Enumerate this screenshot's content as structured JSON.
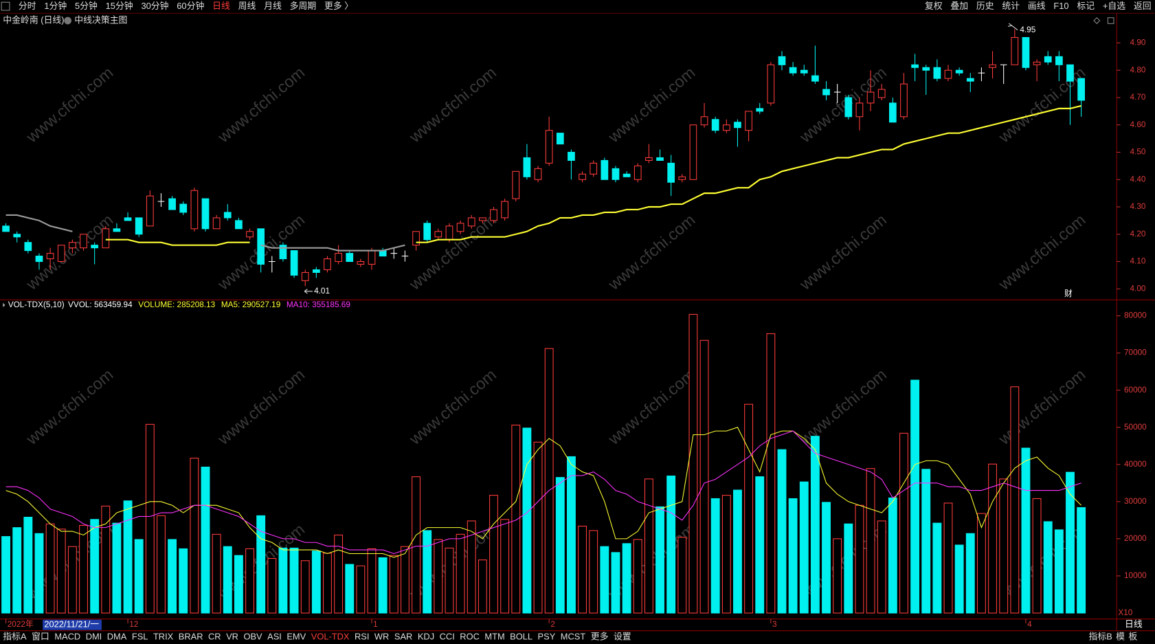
{
  "toolbar": {
    "left": [
      "分时",
      "1分钟",
      "5分钟",
      "15分钟",
      "30分钟",
      "60分钟",
      "日线",
      "周线",
      "月线",
      "多周期",
      "更多 〉"
    ],
    "active": "日线",
    "right": [
      "复权",
      "叠加",
      "历史",
      "统计",
      "画线",
      "F10",
      "标记",
      "+自选",
      "返回"
    ]
  },
  "header": {
    "title": "中金岭南 (日线)",
    "indicator": "中线决策主图"
  },
  "watermark": "www.cfchi.com",
  "bottom": {
    "tabs": [
      "指标A",
      "窗口",
      "MACD",
      "DMI",
      "DMA",
      "FSL",
      "TRIX",
      "BRAR",
      "CR",
      "VR",
      "OBV",
      "ASI",
      "EMV",
      "VOL-TDX",
      "RSI",
      "WR",
      "SAR",
      "KDJ",
      "CCI",
      "ROC",
      "MTM",
      "BOLL",
      "PSY",
      "MCST",
      "更多",
      "设置"
    ],
    "active": "VOL-TDX",
    "right": [
      "指标B",
      "模",
      "板"
    ],
    "period": "日线",
    "cursor_date": "2022/11/21/一"
  },
  "chart_data": [
    {
      "type": "candlestick",
      "up_color": "#ff3c3c",
      "down_color": "#00f0f0",
      "doji_color": "#ffffff",
      "categories": [
        "2022年",
        null,
        null,
        null,
        null,
        null,
        null,
        null,
        null,
        null,
        null,
        "12",
        null,
        null,
        null,
        null,
        null,
        null,
        null,
        null,
        null,
        null,
        null,
        null,
        null,
        null,
        null,
        null,
        null,
        null,
        null,
        null,
        null,
        "1",
        null,
        null,
        null,
        null,
        null,
        null,
        null,
        null,
        null,
        null,
        null,
        null,
        null,
        null,
        null,
        "2",
        null,
        null,
        null,
        null,
        null,
        null,
        null,
        null,
        null,
        null,
        null,
        null,
        null,
        null,
        null,
        null,
        null,
        null,
        null,
        "3",
        null,
        null,
        null,
        null,
        null,
        null,
        null,
        null,
        null,
        null,
        null,
        null,
        null,
        null,
        null,
        null,
        null,
        null,
        null,
        null,
        null,
        null,
        "4",
        null,
        null,
        null,
        null,
        null
      ],
      "open": [
        4.23,
        4.2,
        4.17,
        4.12,
        4.11,
        4.1,
        4.15,
        4.15,
        4.16,
        4.15,
        4.22,
        4.26,
        4.26,
        4.23,
        4.32,
        4.33,
        4.31,
        4.22,
        4.33,
        4.22,
        4.28,
        4.25,
        4.19,
        4.22,
        4.1,
        4.16,
        4.14,
        4.03,
        4.07,
        4.07,
        4.1,
        4.13,
        4.09,
        4.09,
        4.14,
        4.13,
        4.12,
        4.16,
        4.24,
        4.19,
        4.18,
        4.21,
        4.23,
        4.25,
        4.25,
        4.26,
        4.33,
        4.48,
        4.4,
        4.46,
        4.57,
        4.5,
        4.4,
        4.42,
        4.47,
        4.44,
        4.42,
        4.4,
        4.47,
        4.48,
        4.46,
        4.4,
        4.4,
        4.6,
        4.62,
        4.58,
        4.61,
        4.58,
        4.66,
        4.68,
        4.85,
        4.81,
        4.8,
        4.78,
        4.73,
        4.72,
        4.7,
        4.63,
        4.68,
        4.7,
        4.68,
        4.63,
        4.82,
        4.81,
        4.81,
        4.77,
        4.8,
        4.77,
        4.79,
        4.81,
        4.82,
        4.82,
        4.92,
        4.82,
        4.85,
        4.85,
        4.82,
        4.77
      ],
      "high": [
        4.24,
        4.21,
        4.18,
        4.13,
        4.15,
        4.16,
        4.18,
        4.2,
        4.17,
        4.23,
        4.24,
        4.28,
        4.26,
        4.36,
        4.35,
        4.34,
        4.32,
        4.37,
        4.33,
        4.27,
        4.31,
        4.26,
        4.22,
        4.22,
        4.12,
        4.17,
        4.14,
        4.07,
        4.08,
        4.12,
        4.16,
        4.14,
        4.11,
        4.15,
        4.15,
        4.15,
        4.14,
        4.21,
        4.25,
        4.22,
        4.24,
        4.25,
        4.27,
        4.26,
        4.3,
        4.33,
        4.43,
        4.53,
        4.45,
        4.63,
        4.57,
        4.51,
        4.43,
        4.47,
        4.48,
        4.45,
        4.43,
        4.46,
        4.53,
        4.51,
        4.49,
        4.42,
        4.6,
        4.68,
        4.63,
        4.62,
        4.62,
        4.65,
        4.68,
        4.83,
        4.87,
        4.83,
        4.82,
        4.89,
        4.76,
        4.75,
        4.71,
        4.7,
        4.8,
        4.75,
        4.7,
        4.79,
        4.86,
        4.82,
        4.84,
        4.82,
        4.81,
        4.79,
        4.81,
        4.87,
        4.82,
        4.95,
        4.92,
        4.84,
        4.87,
        4.87,
        4.82,
        4.77
      ],
      "low": [
        4.21,
        4.17,
        4.13,
        4.07,
        4.07,
        4.1,
        4.13,
        4.14,
        4.09,
        4.15,
        4.21,
        4.25,
        4.19,
        4.23,
        4.3,
        4.29,
        4.27,
        4.21,
        4.21,
        4.22,
        4.25,
        4.22,
        4.18,
        4.06,
        4.06,
        4.1,
        4.04,
        4.01,
        4.04,
        4.06,
        4.09,
        4.1,
        4.08,
        4.07,
        4.12,
        4.11,
        4.1,
        4.14,
        4.17,
        4.18,
        4.17,
        4.2,
        4.22,
        4.24,
        4.24,
        4.25,
        4.32,
        4.4,
        4.39,
        4.45,
        4.53,
        4.4,
        4.39,
        4.41,
        4.4,
        4.39,
        4.41,
        4.39,
        4.46,
        4.47,
        4.34,
        4.39,
        4.4,
        4.59,
        4.57,
        4.57,
        4.52,
        4.54,
        4.64,
        4.67,
        4.8,
        4.78,
        4.78,
        4.75,
        4.69,
        4.68,
        4.62,
        4.58,
        4.65,
        4.69,
        4.61,
        4.62,
        4.76,
        4.71,
        4.76,
        4.76,
        4.78,
        4.72,
        4.76,
        4.77,
        4.75,
        4.82,
        4.8,
        4.76,
        4.82,
        4.76,
        4.6,
        4.63
      ],
      "close": [
        4.21,
        4.19,
        4.14,
        4.1,
        4.13,
        4.16,
        4.17,
        4.2,
        4.15,
        4.22,
        4.21,
        4.25,
        4.2,
        4.34,
        4.32,
        4.29,
        4.28,
        4.36,
        4.22,
        4.26,
        4.26,
        4.22,
        4.21,
        4.09,
        4.1,
        4.11,
        4.05,
        4.06,
        4.06,
        4.11,
        4.13,
        4.1,
        4.1,
        4.14,
        4.12,
        4.13,
        4.12,
        4.21,
        4.18,
        4.21,
        4.23,
        4.24,
        4.26,
        4.26,
        4.29,
        4.32,
        4.43,
        4.41,
        4.44,
        4.58,
        4.53,
        4.47,
        4.42,
        4.46,
        4.4,
        4.4,
        4.41,
        4.45,
        4.48,
        4.47,
        4.39,
        4.41,
        4.6,
        4.63,
        4.58,
        4.6,
        4.59,
        4.65,
        4.65,
        4.82,
        4.82,
        4.79,
        4.79,
        4.76,
        4.71,
        4.72,
        4.63,
        4.68,
        4.72,
        4.73,
        4.61,
        4.75,
        4.81,
        4.8,
        4.77,
        4.8,
        4.79,
        4.76,
        4.79,
        4.82,
        4.82,
        4.92,
        4.81,
        4.83,
        4.83,
        4.82,
        4.76,
        4.69
      ],
      "lines": [
        {
          "color": "#ffff33",
          "values": [
            null,
            null,
            null,
            null,
            null,
            null,
            null,
            null,
            null,
            4.18,
            4.18,
            4.18,
            4.17,
            4.17,
            4.17,
            4.16,
            4.16,
            4.16,
            4.16,
            4.16,
            4.17,
            4.17,
            4.17,
            null,
            null,
            null,
            null,
            null,
            null,
            null,
            null,
            null,
            null,
            null,
            null,
            null,
            null,
            4.17,
            4.17,
            4.18,
            4.18,
            4.18,
            4.19,
            4.19,
            4.19,
            4.19,
            4.2,
            4.21,
            4.23,
            4.24,
            4.26,
            4.26,
            4.27,
            4.27,
            4.28,
            4.28,
            4.29,
            4.29,
            4.3,
            4.3,
            4.31,
            4.31,
            4.33,
            4.35,
            4.35,
            4.36,
            4.37,
            4.37,
            4.4,
            4.41,
            4.43,
            4.44,
            4.45,
            4.46,
            4.47,
            4.48,
            4.48,
            4.49,
            4.5,
            4.51,
            4.51,
            4.53,
            4.54,
            4.55,
            4.56,
            4.57,
            4.57,
            4.58,
            4.59,
            4.6,
            4.61,
            4.62,
            4.63,
            4.64,
            4.65,
            4.66,
            4.66,
            4.67
          ]
        },
        {
          "color": "#9a9a9a",
          "values": [
            4.27,
            4.27,
            4.26,
            4.25,
            4.23,
            4.22,
            4.21,
            null,
            null,
            null,
            null,
            null,
            null,
            null,
            null,
            null,
            null,
            null,
            null,
            null,
            null,
            null,
            null,
            4.16,
            4.15,
            4.15,
            4.15,
            4.15,
            4.15,
            4.15,
            4.14,
            4.14,
            4.14,
            4.14,
            4.14,
            4.15,
            4.16,
            null,
            null,
            null,
            null,
            null,
            null,
            null,
            null,
            null,
            null,
            null,
            null,
            null,
            null,
            null,
            null,
            null,
            null,
            null,
            null,
            null,
            null,
            null,
            null,
            null,
            null,
            null,
            null,
            null,
            null,
            null,
            null,
            null,
            null,
            null,
            null,
            null,
            null,
            null,
            null,
            null,
            null,
            null,
            null,
            null,
            null,
            null,
            null,
            null,
            null,
            null,
            null,
            null,
            null,
            null,
            null,
            null,
            null,
            null,
            null,
            null
          ]
        }
      ],
      "annotations": [
        {
          "value": 4.95,
          "label": "4.95"
        },
        {
          "value": 4.01,
          "label": "4.01"
        }
      ],
      "marker": "财",
      "ylim": [
        3.965,
        4.96
      ],
      "yticks": [
        {
          "value": 4.0,
          "label": "4.00"
        },
        {
          "value": 4.1,
          "label": "4.10"
        },
        {
          "value": 4.2,
          "label": "4.20"
        },
        {
          "value": 4.3,
          "label": "4.30"
        },
        {
          "value": 4.4,
          "label": "4.40"
        },
        {
          "value": 4.5,
          "label": "4.50"
        },
        {
          "value": 4.6,
          "label": "4.60"
        },
        {
          "value": 4.7,
          "label": "4.70"
        },
        {
          "value": 4.8,
          "label": "4.80"
        },
        {
          "value": 4.9,
          "label": "4.90"
        }
      ]
    },
    {
      "type": "bar",
      "title": "VOL-TDX(5,10)",
      "readouts": [
        {
          "text": "VVOL: 563459.94",
          "color": "#ffffff"
        },
        {
          "text": "VOLUME: 285208.13",
          "color": "#ffff33"
        },
        {
          "text": "MA5: 290527.19",
          "color": "#ffff33"
        },
        {
          "text": "MA10: 355185.69",
          "color": "#ff33ff"
        }
      ],
      "values": [
        20600,
        23000,
        25800,
        21400,
        24000,
        22600,
        17900,
        23600,
        25200,
        28800,
        24200,
        30200,
        19800,
        50800,
        26200,
        19800,
        17300,
        41700,
        39300,
        21200,
        17900,
        15500,
        17300,
        26200,
        14700,
        17500,
        17500,
        14100,
        16700,
        16100,
        21000,
        13100,
        12700,
        17300,
        14900,
        15500,
        17900,
        36700,
        22200,
        19800,
        17500,
        21200,
        24800,
        14300,
        31700,
        25200,
        50600,
        49800,
        46000,
        71200,
        36500,
        42100,
        23400,
        22200,
        17900,
        16300,
        18700,
        19800,
        36100,
        28600,
        36900,
        20400,
        80400,
        73400,
        30800,
        31700,
        33100,
        56200,
        36700,
        75200,
        44000,
        30800,
        35300,
        47600,
        29800,
        20000,
        24000,
        29000,
        38900,
        24800,
        31000,
        48400,
        62700,
        38700,
        24200,
        29600,
        18300,
        21400,
        26800,
        40100,
        36100,
        60900,
        44400,
        30800,
        24600,
        22400,
        37900,
        28400
      ],
      "lines": [
        {
          "color": "#ffff33",
          "values": [
            33000,
            32000,
            30000,
            27000,
            24000,
            22000,
            22000,
            21000,
            23000,
            24000,
            27000,
            28000,
            29000,
            30000,
            30000,
            29000,
            27000,
            29000,
            29000,
            29000,
            28000,
            27000,
            23000,
            20000,
            19000,
            17000,
            17000,
            17000,
            17000,
            16000,
            17000,
            16000,
            16000,
            16000,
            16000,
            15000,
            16000,
            21000,
            23000,
            23000,
            23000,
            23000,
            22000,
            20000,
            24000,
            27000,
            30000,
            40000,
            44000,
            47000,
            45000,
            40000,
            38000,
            37000,
            30000,
            20000,
            20000,
            22000,
            27000,
            28000,
            29000,
            30000,
            48000,
            48000,
            49000,
            49000,
            50000,
            44000,
            38000,
            48000,
            49000,
            49000,
            47000,
            44000,
            35000,
            32000,
            30000,
            29000,
            28000,
            27000,
            30000,
            35000,
            40000,
            41000,
            41000,
            40000,
            36000,
            32000,
            23000,
            30000,
            35000,
            39000,
            41000,
            42000,
            39000,
            37000,
            32000,
            29000
          ]
        },
        {
          "color": "#ff33ff",
          "values": [
            34000,
            34000,
            33000,
            31000,
            28000,
            27000,
            26000,
            24000,
            23000,
            23000,
            24000,
            25000,
            26000,
            26000,
            27000,
            27000,
            28000,
            29000,
            29000,
            28000,
            27000,
            26000,
            24000,
            22000,
            21000,
            20000,
            20000,
            19000,
            19000,
            18000,
            18000,
            17000,
            17000,
            17000,
            17000,
            16000,
            17000,
            18000,
            18000,
            19000,
            20000,
            20000,
            21000,
            22000,
            23000,
            24000,
            25000,
            27000,
            30000,
            33000,
            35000,
            37000,
            37000,
            38000,
            36000,
            33000,
            32000,
            30000,
            29000,
            28000,
            27000,
            25000,
            29000,
            35000,
            36000,
            38000,
            40000,
            42000,
            45000,
            47000,
            48000,
            49000,
            46000,
            43000,
            42000,
            41000,
            40000,
            39000,
            38000,
            36000,
            31000,
            33000,
            35000,
            35000,
            35000,
            34000,
            34000,
            33000,
            33000,
            34000,
            35000,
            34000,
            33000,
            33000,
            33000,
            33000,
            34000,
            35000
          ]
        }
      ],
      "ylim": [
        0,
        83700
      ],
      "yticks": [
        10000,
        20000,
        30000,
        40000,
        50000,
        60000,
        70000,
        80000
      ],
      "unit_label": "X10"
    }
  ]
}
